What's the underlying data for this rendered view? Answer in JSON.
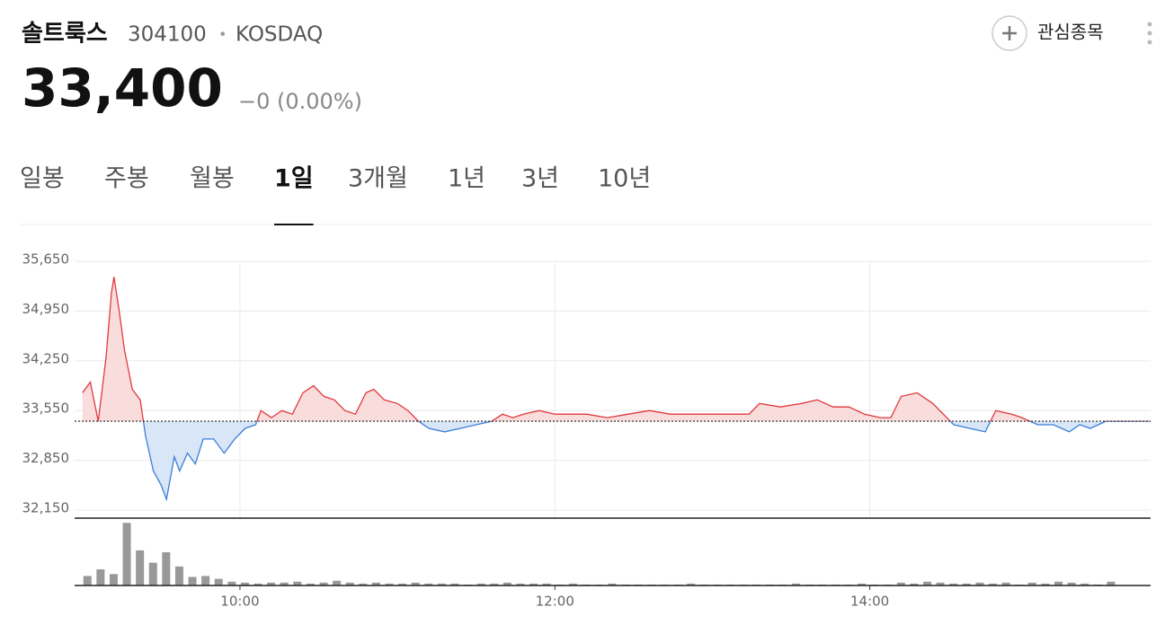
{
  "header": {
    "name": "솔트룩스",
    "code": "304100",
    "separator": "•",
    "market": "KOSDAQ",
    "price": "33,400",
    "change": "−0 (0.00%)",
    "watch_button": "관심종목"
  },
  "tabs": [
    "일봉",
    "주봉",
    "월봉",
    "1일",
    "3개월",
    "1년",
    "3년",
    "10년"
  ],
  "active_tab": 3,
  "chart_data": [
    {
      "type": "line",
      "base": 33400,
      "up_color": "#e0393e",
      "down_color": "#3b7fd9",
      "up_fill": "#f9dcdc",
      "down_fill": "#d8e6f8",
      "x": [
        "09:00",
        "09:03",
        "09:06",
        "09:09",
        "09:11",
        "09:12",
        "09:14",
        "09:16",
        "09:19",
        "09:22",
        "09:24",
        "09:27",
        "09:30",
        "09:32",
        "09:35",
        "09:37",
        "09:40",
        "09:43",
        "09:46",
        "09:50",
        "09:54",
        "09:58",
        "10:02",
        "10:06",
        "10:08",
        "10:12",
        "10:16",
        "10:20",
        "10:24",
        "10:28",
        "10:32",
        "10:36",
        "10:40",
        "10:44",
        "10:48",
        "10:51",
        "10:55",
        "11:00",
        "11:04",
        "11:08",
        "11:12",
        "11:18",
        "11:24",
        "11:30",
        "11:36",
        "11:40",
        "11:44",
        "11:48",
        "11:54",
        "12:00",
        "12:06",
        "12:12",
        "12:20",
        "12:28",
        "12:36",
        "12:44",
        "12:52",
        "13:00",
        "13:08",
        "13:14",
        "13:18",
        "13:26",
        "13:34",
        "13:40",
        "13:46",
        "13:52",
        "13:58",
        "14:04",
        "14:08",
        "14:12",
        "14:18",
        "14:24",
        "14:28",
        "14:32",
        "14:38",
        "14:44",
        "14:48",
        "14:54",
        "14:58",
        "15:04",
        "15:10",
        "15:16",
        "15:20",
        "15:24",
        "15:30",
        "15:47"
      ],
      "values": [
        33800,
        33950,
        33400,
        34300,
        35200,
        35430,
        34950,
        34400,
        33850,
        33700,
        33200,
        32700,
        32500,
        32300,
        32900,
        32700,
        32950,
        32800,
        33150,
        33150,
        32950,
        33150,
        33300,
        33350,
        33550,
        33450,
        33550,
        33500,
        33800,
        33900,
        33750,
        33700,
        33550,
        33500,
        33800,
        33850,
        33700,
        33650,
        33550,
        33400,
        33300,
        33250,
        33300,
        33350,
        33400,
        33500,
        33450,
        33500,
        33550,
        33500,
        33500,
        33500,
        33450,
        33500,
        33550,
        33500,
        33500,
        33500,
        33500,
        33500,
        33650,
        33600,
        33650,
        33700,
        33600,
        33600,
        33500,
        33450,
        33450,
        33750,
        33800,
        33650,
        33500,
        33350,
        33300,
        33250,
        33550,
        33500,
        33450,
        33350,
        33350,
        33250,
        33350,
        33300,
        33400,
        33400
      ],
      "xlim": [
        "08:57",
        "15:47"
      ],
      "xticks": [
        "10:00",
        "12:00",
        "14:00"
      ],
      "ylim": [
        32150,
        35650
      ],
      "yticks": [
        {
          "value": 32150,
          "label": "32,150"
        },
        {
          "value": 32850,
          "label": "32,850"
        },
        {
          "value": 33550,
          "label": "33,550"
        },
        {
          "value": 34250,
          "label": "34,250"
        },
        {
          "value": 34950,
          "label": "34,950"
        },
        {
          "value": 35650,
          "label": "35,650"
        }
      ],
      "grid": true
    },
    {
      "type": "bar",
      "color": "#999999",
      "ylim": [
        0,
        70
      ],
      "x": [
        "09:00",
        "09:05",
        "09:10",
        "09:15",
        "09:20",
        "09:25",
        "09:30",
        "09:35",
        "09:40",
        "09:45",
        "09:50",
        "09:55",
        "10:00",
        "10:05",
        "10:10",
        "10:15",
        "10:20",
        "10:25",
        "10:30",
        "10:35",
        "10:40",
        "10:45",
        "10:50",
        "10:55",
        "11:00",
        "11:05",
        "11:10",
        "11:15",
        "11:20",
        "11:25",
        "11:30",
        "11:35",
        "11:40",
        "11:45",
        "11:50",
        "11:55",
        "12:00",
        "12:05",
        "12:10",
        "12:15",
        "12:20",
        "12:25",
        "12:30",
        "12:35",
        "12:40",
        "12:45",
        "12:50",
        "12:55",
        "13:00",
        "13:05",
        "13:10",
        "13:15",
        "13:20",
        "13:25",
        "13:30",
        "13:35",
        "13:40",
        "13:45",
        "13:50",
        "13:55",
        "14:00",
        "14:05",
        "14:10",
        "14:15",
        "14:20",
        "14:25",
        "14:30",
        "14:35",
        "14:40",
        "14:45",
        "14:50",
        "14:55",
        "15:00",
        "15:05",
        "15:10",
        "15:15",
        "15:20",
        "15:25",
        "15:30"
      ],
      "values": [
        10,
        17,
        12,
        66,
        37,
        24,
        35,
        20,
        9,
        10,
        7,
        4,
        3,
        2,
        3,
        3,
        4,
        2,
        3,
        5,
        3,
        2,
        3,
        2,
        2,
        3,
        2,
        2,
        2,
        1,
        2,
        2,
        3,
        2,
        2,
        2,
        1,
        2,
        1,
        1,
        2,
        1,
        1,
        1,
        1,
        1,
        2,
        1,
        1,
        1,
        1,
        1,
        1,
        1,
        2,
        1,
        1,
        1,
        1,
        2,
        1,
        1,
        3,
        2,
        4,
        3,
        2,
        2,
        3,
        2,
        3,
        1,
        3,
        2,
        4,
        3,
        2,
        1,
        4
      ]
    }
  ]
}
